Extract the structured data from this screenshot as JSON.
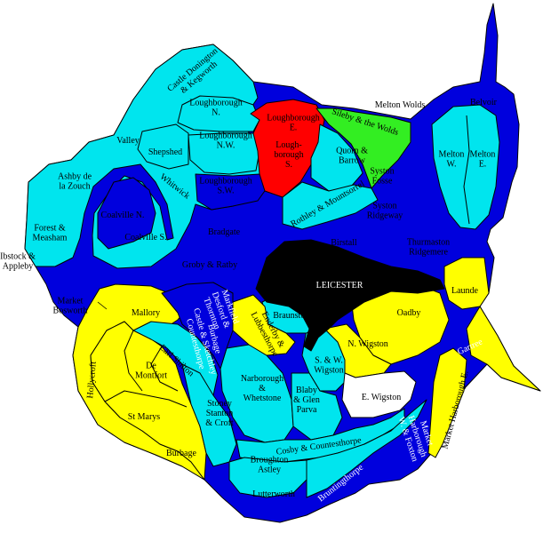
{
  "colors": {
    "light_blue": "#00e5ee",
    "dark_blue": "#0000dd",
    "yellow": "#ffff00",
    "red": "#ff0000",
    "green": "#33ee22",
    "black": "#000000",
    "white": "#ffffff"
  },
  "labels": {
    "castle_donington": [
      "Castle Donington",
      "& Kegworth"
    ],
    "loughborough_n": [
      "Loughborough",
      "N."
    ],
    "loughborough_e": [
      "Loughborough",
      "E."
    ],
    "sileby": [
      "Sileby & the Wolds"
    ],
    "melton_wolds": [
      "Melton Wolds"
    ],
    "belvoir": [
      "Belvoir"
    ],
    "valley": [
      "Valley"
    ],
    "shepshed": [
      "Shepshed"
    ],
    "loughborough_nw": [
      "Loughborough",
      "N.W."
    ],
    "loughborough_s": [
      "Lough-",
      "borough",
      "S."
    ],
    "quorn": [
      "Quorn &",
      "Barrow"
    ],
    "syston_fosse": [
      "Syston",
      "Fosse"
    ],
    "melton_w": [
      "Melton",
      "W."
    ],
    "melton_e": [
      "Melton",
      "E."
    ],
    "ashby": [
      "Ashby de",
      "la Zouch"
    ],
    "whitwick": [
      "Whitwick"
    ],
    "loughborough_sw": [
      "Loughborough",
      "S.W."
    ],
    "rothley": [
      "Rothley & Mountsorrel"
    ],
    "coalville_n": [
      "Coalville N."
    ],
    "syston_ridgeway": [
      "Syston",
      "Ridgeway"
    ],
    "forest_measham": [
      "Forest &",
      "Measham"
    ],
    "coalville_s": [
      "Coalville S."
    ],
    "bradgate": [
      "Bradgate"
    ],
    "birstall": [
      "Birstall"
    ],
    "thurmaston": [
      "Thurmaston",
      "Ridgemere"
    ],
    "ibstock": [
      "Ibstock &",
      "Appleby"
    ],
    "groby": [
      "Groby & Ratby"
    ],
    "leicester": [
      "LEICESTER"
    ],
    "launde": [
      "Launde"
    ],
    "market_bosworth": [
      "Market",
      "Bosworth"
    ],
    "mallory": [
      "Mallory"
    ],
    "markfield": [
      "Markfield",
      "Desford &",
      "Thornton"
    ],
    "braunstone": [
      "Braunstone"
    ],
    "oadby": [
      "Oadby"
    ],
    "burbage_castle": [
      "Burbage",
      "Castle & Sketchley",
      "Countesthorpe"
    ],
    "enderby": [
      "Enderby &",
      "Lubbesthorpe"
    ],
    "n_wigston": [
      "N. Wigston"
    ],
    "gartree": [
      "Gartree"
    ],
    "earl_shilton": [
      "Earl Shilton"
    ],
    "sw_wigston": [
      "S. & W.",
      "Wigston"
    ],
    "hollycroft": [
      "Hollycroft"
    ],
    "de_montfort": [
      "De",
      "Montfort"
    ],
    "e_wigston": [
      "E. Wigston"
    ],
    "market_harborough_e": [
      "Market Harborough E."
    ],
    "narborough": [
      "Narborough",
      "&",
      "Whetstone"
    ],
    "blaby": [
      "Blaby",
      "& Glen",
      "Parva"
    ],
    "st_marys": [
      "St Marys"
    ],
    "stoney_stanton": [
      "Stoney",
      "Stanton",
      "& Croft"
    ],
    "market_harborough_w": [
      "Market",
      "Harborough",
      "W. & Foxton"
    ],
    "cosby": [
      "Cosby & Countesthorpe"
    ],
    "burbage": [
      "Burbage"
    ],
    "broughton": [
      "Broughton",
      "Astley"
    ],
    "bruntingthorpe": [
      "Bruntingthorpe"
    ],
    "lutterworth": [
      "Lutterworth"
    ]
  }
}
